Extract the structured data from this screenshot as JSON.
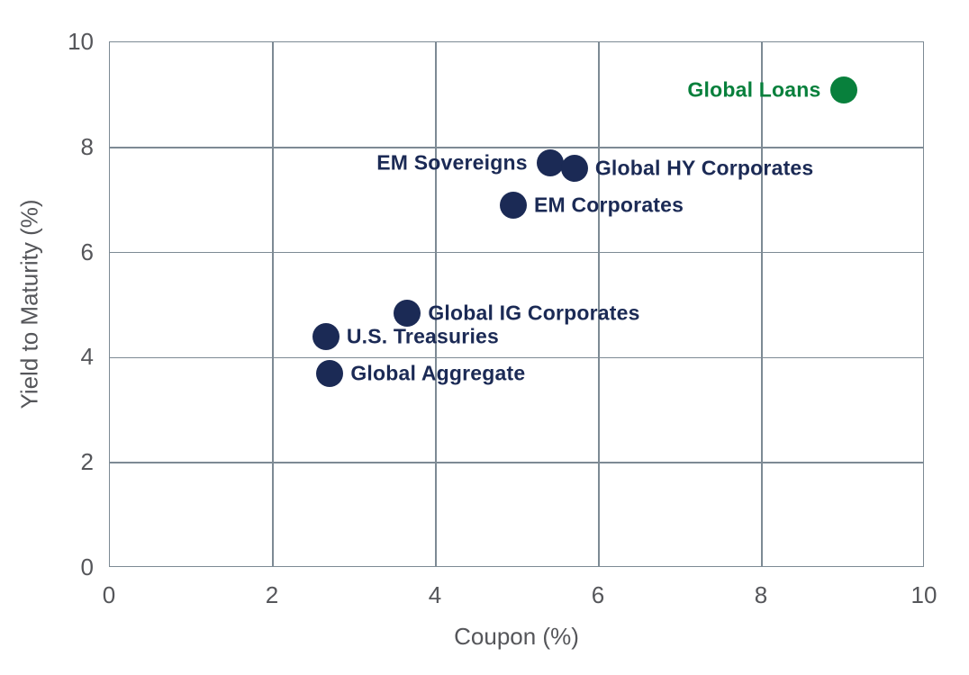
{
  "chart_data": {
    "type": "scatter",
    "title": "",
    "xlabel": "Coupon (%)",
    "ylabel": "Yield to Maturity (%)",
    "xlim": [
      0,
      10
    ],
    "ylim": [
      0,
      10
    ],
    "xticks": [
      0,
      2,
      4,
      6,
      8,
      10
    ],
    "yticks": [
      0,
      2,
      4,
      6,
      8,
      10
    ],
    "grid": true,
    "legend_position": "none",
    "series": [
      {
        "name": "Global Aggregate",
        "x": 2.7,
        "y": 3.7,
        "color": "#1B2A55",
        "label_side": "right"
      },
      {
        "name": "U.S. Treasuries",
        "x": 2.65,
        "y": 4.4,
        "color": "#1B2A55",
        "label_side": "right"
      },
      {
        "name": "Global IG Corporates",
        "x": 3.65,
        "y": 4.85,
        "color": "#1B2A55",
        "label_side": "right"
      },
      {
        "name": "EM Corporates",
        "x": 4.95,
        "y": 6.9,
        "color": "#1B2A55",
        "label_side": "right"
      },
      {
        "name": "EM Sovereigns",
        "x": 5.4,
        "y": 7.7,
        "color": "#1B2A55",
        "label_side": "left"
      },
      {
        "name": "Global HY Corporates",
        "x": 5.7,
        "y": 7.6,
        "color": "#1B2A55",
        "label_side": "right"
      },
      {
        "name": "Global Loans",
        "x": 9.0,
        "y": 9.1,
        "color": "#08803C",
        "label_side": "left"
      }
    ],
    "colors": {
      "navy": "#1B2A55",
      "green": "#08803C",
      "grid": "#7D8A94",
      "tick_text": "#55565A",
      "axis_title_text": "#55565A",
      "background": "#FFFFFF"
    }
  }
}
